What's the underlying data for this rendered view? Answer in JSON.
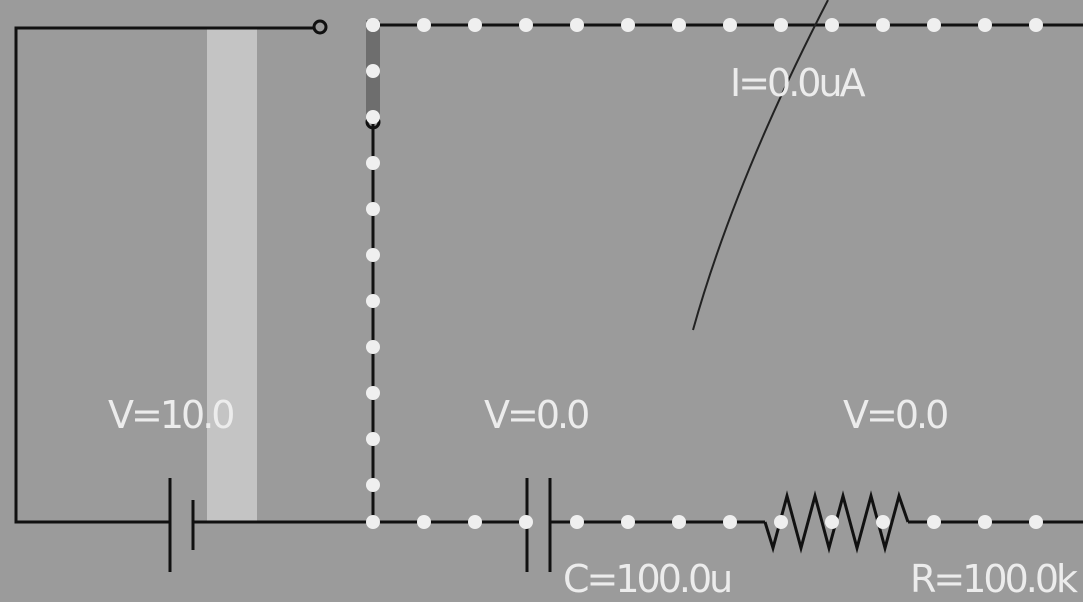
{
  "components": {
    "battery": {
      "label": "V=10.0"
    },
    "capacitor": {
      "voltage_label": "V=0.0",
      "value_label": "C=100.0u"
    },
    "resistor": {
      "voltage_label": "V=0.0",
      "value_label": "R=100.0k"
    },
    "current_readout": {
      "label": "I=0.0uA"
    }
  },
  "colors": {
    "background": "#9b9b9b",
    "wire": "#111111",
    "current_dot": "#efefef",
    "text": "#ececec",
    "battery_bar": "#c4c4c4",
    "switch_blade": "#6e6e6e"
  }
}
